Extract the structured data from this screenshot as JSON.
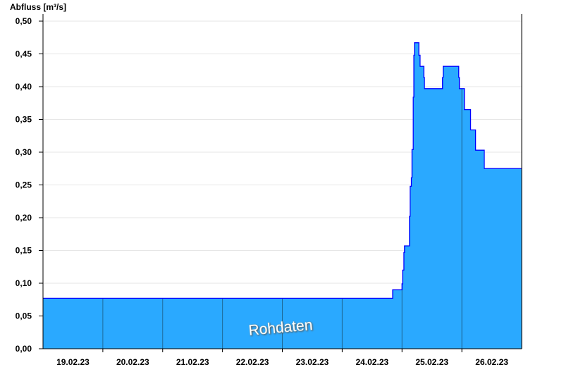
{
  "chart_data": {
    "type": "area",
    "step": true,
    "ylabel": "Abfluss [m³/s]",
    "ylim": [
      0,
      0.5
    ],
    "yticks": [
      "0,00",
      "0,05",
      "0,10",
      "0,15",
      "0,20",
      "0,25",
      "0,30",
      "0,35",
      "0,40",
      "0,45",
      "0,50"
    ],
    "xlim": [
      "2023-02-19 00:00",
      "2023-02-26 24:00"
    ],
    "xticks": [
      "19.02.23",
      "20.02.23",
      "21.02.23",
      "22.02.23",
      "23.02.23",
      "24.02.23",
      "25.02.23",
      "26.02.23"
    ],
    "grid": true,
    "watermark": "Rohdaten",
    "colors": {
      "fill": "#2aa9ff",
      "line": "#0000ff",
      "grid": "#e6e6e6",
      "day_separator": "#1f6a9a"
    },
    "series": [
      {
        "points": [
          [
            "2023-02-19 00:00",
            0.077
          ],
          [
            "2023-02-24 20:15",
            0.09
          ],
          [
            "2023-02-25 00:00",
            0.099
          ],
          [
            "2023-02-25 00:15",
            0.12
          ],
          [
            "2023-02-25 00:45",
            0.147
          ],
          [
            "2023-02-25 01:00",
            0.157
          ],
          [
            "2023-02-25 03:00",
            0.202
          ],
          [
            "2023-02-25 03:15",
            0.248
          ],
          [
            "2023-02-25 03:45",
            0.261
          ],
          [
            "2023-02-25 04:00",
            0.304
          ],
          [
            "2023-02-25 04:30",
            0.384
          ],
          [
            "2023-02-25 04:45",
            0.448
          ],
          [
            "2023-02-25 05:00",
            0.467
          ],
          [
            "2023-02-25 06:45",
            0.448
          ],
          [
            "2023-02-25 07:15",
            0.431
          ],
          [
            "2023-02-25 08:45",
            0.414
          ],
          [
            "2023-02-25 09:00",
            0.397
          ],
          [
            "2023-02-25 16:15",
            0.414
          ],
          [
            "2023-02-25 16:30",
            0.431
          ],
          [
            "2023-02-25 22:45",
            0.414
          ],
          [
            "2023-02-25 23:00",
            0.397
          ],
          [
            "2023-02-26 01:00",
            0.365
          ],
          [
            "2023-02-26 03:30",
            0.334
          ],
          [
            "2023-02-26 05:30",
            0.303
          ],
          [
            "2023-02-26 09:00",
            0.275
          ],
          [
            "2023-02-26 23:45",
            0.275
          ]
        ]
      }
    ]
  }
}
